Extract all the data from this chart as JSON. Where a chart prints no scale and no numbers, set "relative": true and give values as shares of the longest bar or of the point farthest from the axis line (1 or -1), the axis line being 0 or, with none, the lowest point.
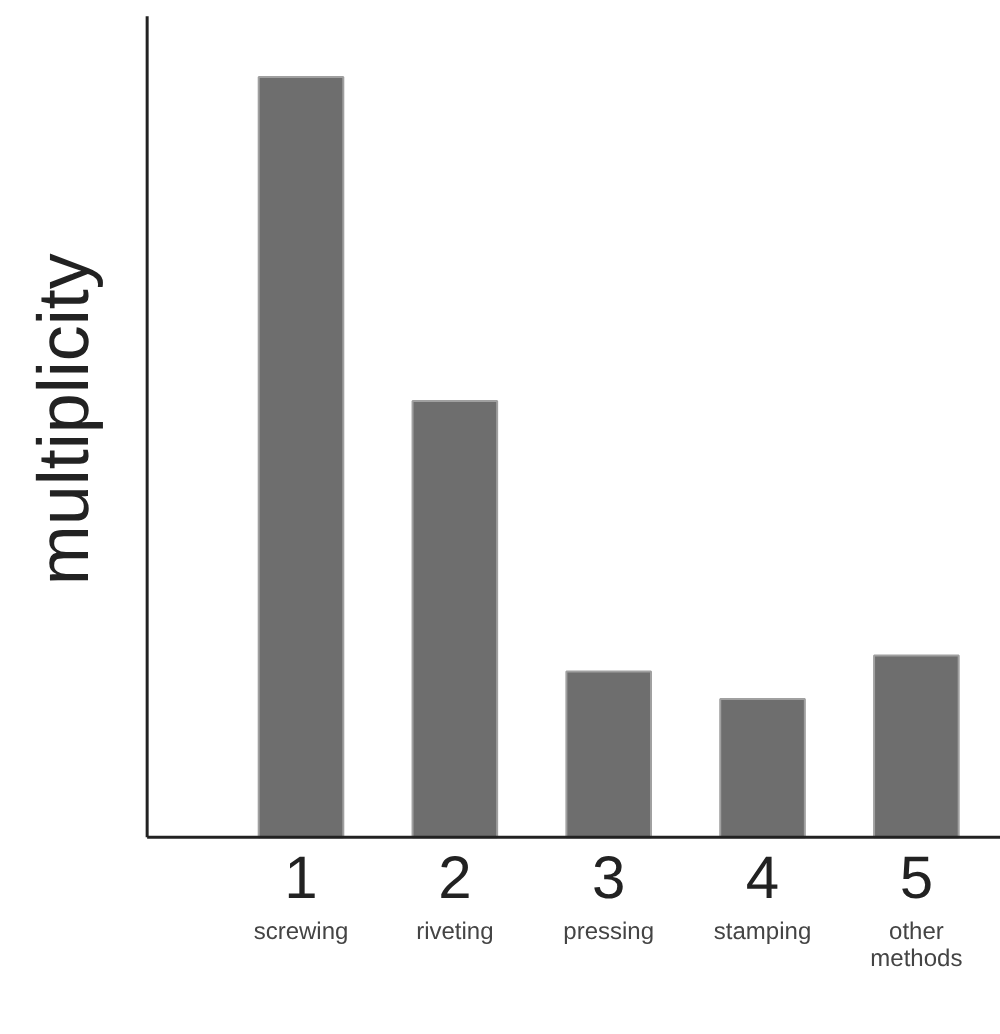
{
  "chart_data": {
    "type": "bar",
    "relative": true,
    "ylabel": "multiplicity",
    "categories": [
      "1\nscrewing",
      "2\nriveting",
      "3\npressing",
      "4\nstamping",
      "5\nother\nmethods"
    ],
    "values": [
      1,
      0.574,
      0.218,
      0.182,
      0.239
    ],
    "color": "#6e6e6e",
    "grid": false
  }
}
